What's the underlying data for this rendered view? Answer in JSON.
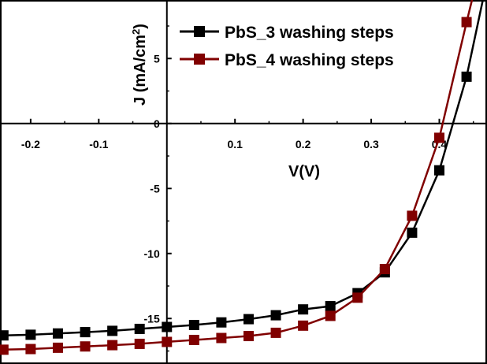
{
  "chart_data": {
    "type": "line",
    "title": "",
    "xlabel": "V(V)",
    "ylabel_main": "J (mA/cm",
    "ylabel_sup": "2",
    "ylabel_close": ")",
    "xlim": [
      -0.245,
      0.47
    ],
    "ylim": [
      -18.5,
      9.5
    ],
    "x_ticks": [
      -0.2,
      -0.1,
      0.1,
      0.2,
      0.3,
      0.4
    ],
    "x_tick_labels": [
      "-0.2",
      "-0.1",
      "0.1",
      "0.2",
      "0.3",
      "0.4"
    ],
    "y_ticks": [
      5,
      0,
      -5,
      -10,
      -15
    ],
    "y_tick_labels": [
      "5",
      "0",
      "-5",
      "-10",
      "-15"
    ],
    "grid": false,
    "legend_position": "top-right",
    "series": [
      {
        "name": "PbS_3 washing steps",
        "color": "#000000",
        "x": [
          -0.24,
          -0.2,
          -0.16,
          -0.12,
          -0.08,
          -0.04,
          0.0,
          0.04,
          0.08,
          0.12,
          0.16,
          0.2,
          0.24,
          0.28,
          0.32,
          0.36,
          0.4,
          0.44
        ],
        "y": [
          -16.3,
          -16.25,
          -16.15,
          -16.05,
          -15.95,
          -15.8,
          -15.65,
          -15.5,
          -15.3,
          -15.05,
          -14.75,
          -14.3,
          -14.05,
          -13.05,
          -11.45,
          -8.4,
          -3.6,
          3.6
        ],
        "curve_end": [
          0.47,
          11.0
        ]
      },
      {
        "name": "PbS_4 washing steps",
        "color": "#800000",
        "x": [
          -0.24,
          -0.2,
          -0.16,
          -0.12,
          -0.08,
          -0.04,
          0.0,
          0.04,
          0.08,
          0.12,
          0.16,
          0.2,
          0.24,
          0.28,
          0.32,
          0.36,
          0.4,
          0.44
        ],
        "y": [
          -17.4,
          -17.35,
          -17.25,
          -17.15,
          -17.05,
          -16.95,
          -16.8,
          -16.65,
          -16.5,
          -16.35,
          -16.1,
          -15.55,
          -14.8,
          -13.4,
          -11.2,
          -7.1,
          -1.1,
          7.8
        ],
        "curve_end": [
          0.455,
          11.0
        ]
      }
    ]
  }
}
